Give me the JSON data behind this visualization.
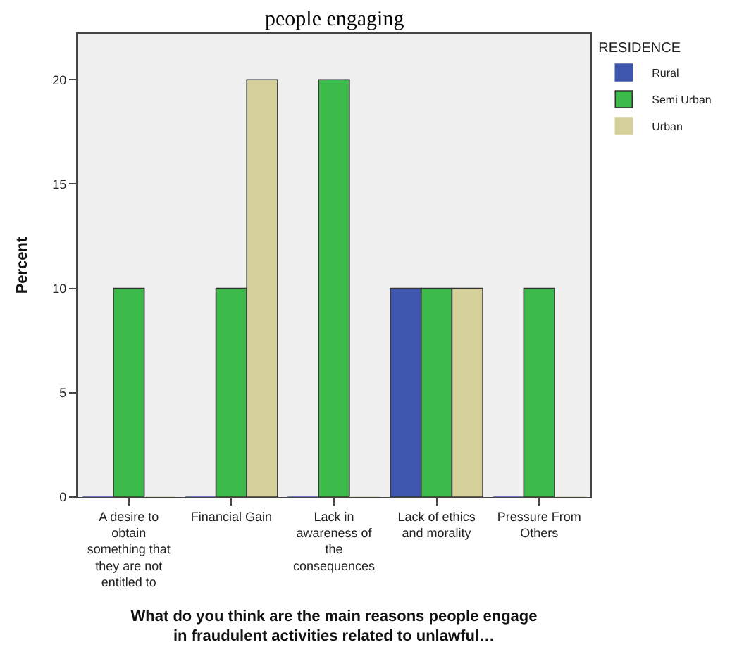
{
  "chart_data": {
    "type": "bar",
    "title": "people engaging",
    "categories": [
      "A desire to obtain something that they are not entitled to",
      "Financial Gain",
      "Lack in awareness of the consequences",
      "Lack of ethics and morality",
      "Pressure From Others"
    ],
    "series": [
      {
        "name": "Rural",
        "color": "#3e56ad",
        "values": [
          0,
          0,
          0,
          10,
          0
        ]
      },
      {
        "name": "Semi Urban",
        "color": "#3dbb4a",
        "values": [
          10,
          10,
          20,
          10,
          10
        ]
      },
      {
        "name": "Urban",
        "color": "#d5d09a",
        "values": [
          0,
          20,
          0,
          10,
          0
        ]
      }
    ],
    "xlabel": "What do you think are the main reasons people engage in fraudulent activities related to unlawful…",
    "ylabel": "Percent",
    "legend_title": "RESIDENCE",
    "legend": "top right",
    "ylim": [
      0,
      22.2
    ],
    "yticks": [
      0,
      5,
      10,
      15,
      20
    ],
    "grid": false
  }
}
